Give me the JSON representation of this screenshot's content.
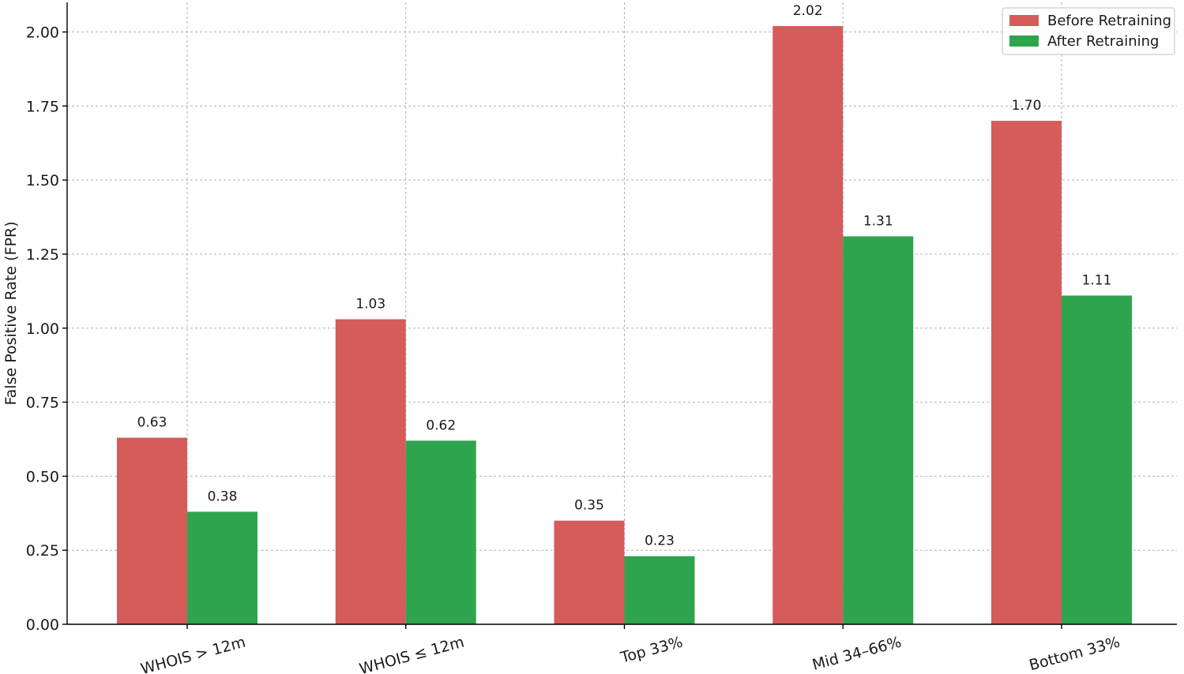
{
  "chart_data": {
    "type": "bar",
    "categories": [
      "WHOIS > 12m",
      "WHOIS ≤ 12m",
      "Top 33%",
      "Mid 34–66%",
      "Bottom 33%"
    ],
    "series": [
      {
        "name": "Before Retraining",
        "color": "#d65b5b",
        "values": [
          0.63,
          1.03,
          0.35,
          2.02,
          1.7
        ],
        "labels": [
          "0.63",
          "1.03",
          "0.35",
          "2.02",
          "1.70"
        ]
      },
      {
        "name": "After Retraining",
        "color": "#2ea44f",
        "values": [
          0.38,
          0.62,
          0.23,
          1.31,
          1.11
        ],
        "labels": [
          "0.38",
          "0.62",
          "0.23",
          "1.31",
          "1.11"
        ]
      }
    ],
    "title": "",
    "xlabel": "",
    "ylabel": "False Positive Rate (FPR)",
    "ylim": [
      0,
      2.1
    ],
    "yticks": [
      0,
      0.25,
      0.5,
      0.75,
      1.0,
      1.25,
      1.5,
      1.75,
      2.0
    ],
    "ytick_labels": [
      "0.00",
      "0.25",
      "0.50",
      "0.75",
      "1.00",
      "1.25",
      "1.50",
      "1.75",
      "2.00"
    ],
    "grid": true,
    "legend_position": "top-right",
    "xtick_rotation": "rotated"
  }
}
